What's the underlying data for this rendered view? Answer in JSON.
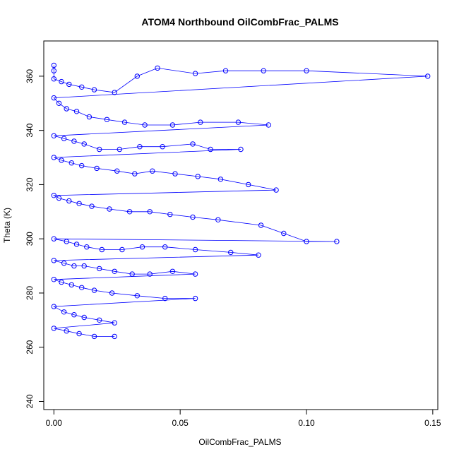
{
  "chart_data": {
    "type": "scatter",
    "title": "ATOM4 Northbound OilCombFrac_PALMS",
    "xlabel": "OilCombFrac_PALMS",
    "ylabel": "Theta (K)",
    "xlim": [
      -0.004,
      0.152
    ],
    "ylim": [
      237,
      373
    ],
    "x_ticks": [
      0.0,
      0.05,
      0.1,
      0.15
    ],
    "x_tick_labels": [
      "0.00",
      "0.05",
      "0.10",
      "0.15"
    ],
    "y_ticks": [
      240,
      260,
      280,
      300,
      320,
      340,
      360
    ],
    "y_tick_labels": [
      "240",
      "260",
      "280",
      "300",
      "320",
      "340",
      "360"
    ],
    "grid": false,
    "marker": "open-circle",
    "connected_lines": true,
    "series_color": "#0000ff",
    "series": [
      {
        "x": [
          0.0,
          0.0,
          0.0,
          0.003,
          0.006,
          0.011,
          0.016,
          0.024,
          0.033,
          0.041,
          0.056,
          0.068,
          0.083,
          0.1,
          0.148,
          0.0,
          0.002,
          0.005,
          0.009,
          0.014,
          0.021,
          0.028,
          0.036,
          0.047,
          0.058,
          0.073,
          0.085,
          0.0,
          0.004,
          0.008,
          0.012,
          0.018,
          0.026,
          0.034,
          0.043,
          0.055,
          0.062,
          0.074,
          0.0,
          0.003,
          0.007,
          0.011,
          0.017,
          0.025,
          0.032,
          0.039,
          0.048,
          0.057,
          0.066,
          0.077,
          0.088,
          0.0,
          0.002,
          0.006,
          0.01,
          0.015,
          0.022,
          0.03,
          0.038,
          0.046,
          0.055,
          0.065,
          0.082,
          0.091,
          0.1,
          0.112,
          0.0,
          0.005,
          0.009,
          0.013,
          0.019,
          0.027,
          0.035,
          0.044,
          0.056,
          0.07,
          0.081,
          0.0,
          0.004,
          0.008,
          0.012,
          0.018,
          0.024,
          0.031,
          0.038,
          0.047,
          0.056,
          0.0,
          0.003,
          0.007,
          0.011,
          0.016,
          0.023,
          0.033,
          0.044,
          0.056,
          0.0,
          0.004,
          0.008,
          0.012,
          0.018,
          0.024,
          0.0,
          0.005,
          0.01,
          0.016,
          0.024
        ],
        "y": [
          364,
          362,
          359,
          358,
          357,
          356,
          355,
          354,
          360,
          363,
          361,
          362,
          362,
          362,
          360,
          352,
          350,
          348,
          347,
          345,
          344,
          343,
          342,
          342,
          343,
          343,
          342,
          338,
          337,
          336,
          335,
          333,
          333,
          334,
          334,
          335,
          333,
          333,
          330,
          329,
          328,
          327,
          326,
          325,
          324,
          325,
          324,
          323,
          322,
          320,
          318,
          316,
          315,
          314,
          313,
          312,
          311,
          310,
          310,
          309,
          308,
          307,
          305,
          302,
          299,
          299,
          300,
          299,
          298,
          297,
          296,
          296,
          297,
          297,
          296,
          295,
          294,
          292,
          291,
          290,
          290,
          289,
          288,
          287,
          287,
          288,
          287,
          285,
          284,
          283,
          282,
          281,
          280,
          279,
          278,
          278,
          275,
          273,
          272,
          271,
          270,
          269,
          267,
          266,
          265,
          264,
          264
        ]
      }
    ]
  }
}
